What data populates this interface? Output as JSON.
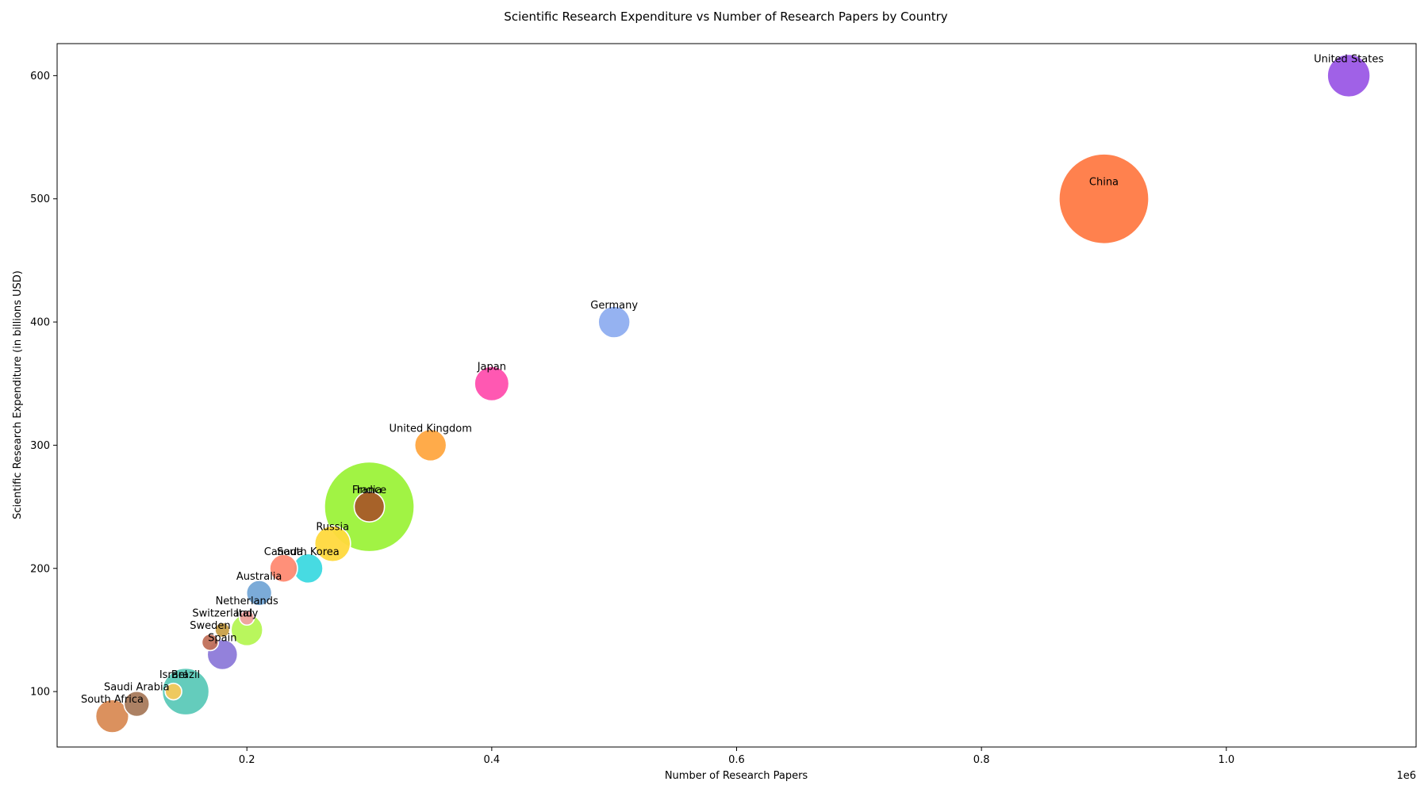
{
  "chart_data": {
    "type": "scatter",
    "title": "Scientific Research Expenditure vs Number of Research Papers by Country",
    "xlabel": "Number of Research Papers",
    "ylabel": "Scientific Research Expenditure (in billions USD)",
    "x_offset_text": "1e6",
    "xlim": [
      45000,
      1155000
    ],
    "ylim": [
      55,
      626
    ],
    "xticks": [
      200000,
      400000,
      600000,
      800000,
      1000000
    ],
    "xtick_labels": [
      "0.2",
      "0.4",
      "0.6",
      "0.8",
      "1.0"
    ],
    "yticks": [
      100,
      200,
      300,
      400,
      500,
      600
    ],
    "ytick_labels": [
      "100",
      "200",
      "300",
      "400",
      "500",
      "600"
    ],
    "grid": false,
    "legend": "none",
    "size_note": "bubble size relative",
    "points": [
      {
        "label": "United States",
        "x": 1100000,
        "y": 600,
        "size": 1.0,
        "color": "#9b59e6"
      },
      {
        "label": "China",
        "x": 900000,
        "y": 500,
        "size": 4.4,
        "color": "#ff7a45"
      },
      {
        "label": "Germany",
        "x": 500000,
        "y": 400,
        "size": 0.55,
        "color": "#8faef0"
      },
      {
        "label": "Japan",
        "x": 400000,
        "y": 350,
        "size": 0.65,
        "color": "#ff4fae"
      },
      {
        "label": "United Kingdom",
        "x": 350000,
        "y": 300,
        "size": 0.55,
        "color": "#ffa640"
      },
      {
        "label": "India",
        "x": 300000,
        "y": 250,
        "size": 4.4,
        "color": "#9cf23a"
      },
      {
        "label": "France",
        "x": 300000,
        "y": 250,
        "size": 0.5,
        "color": "#a85a28"
      },
      {
        "label": "Russia",
        "x": 270000,
        "y": 220,
        "size": 0.7,
        "color": "#ffd93d"
      },
      {
        "label": "Canada",
        "x": 230000,
        "y": 200,
        "size": 0.42,
        "color": "#ff8a72"
      },
      {
        "label": "South Korea",
        "x": 250000,
        "y": 200,
        "size": 0.48,
        "color": "#3dd9e0"
      },
      {
        "label": "Australia",
        "x": 210000,
        "y": 180,
        "size": 0.35,
        "color": "#74a6d6"
      },
      {
        "label": "Netherlands",
        "x": 200000,
        "y": 160,
        "size": 0.12,
        "color": "#f0a0a0"
      },
      {
        "label": "Italy",
        "x": 200000,
        "y": 150,
        "size": 0.55,
        "color": "#b5f554"
      },
      {
        "label": "Switzerland",
        "x": 180000,
        "y": 150,
        "size": 0.12,
        "color": "#c8a048"
      },
      {
        "label": "Sweden",
        "x": 170000,
        "y": 140,
        "size": 0.15,
        "color": "#c0705a"
      },
      {
        "label": "Spain",
        "x": 180000,
        "y": 130,
        "size": 0.5,
        "color": "#8d7ad9"
      },
      {
        "label": "Brazil",
        "x": 150000,
        "y": 100,
        "size": 1.2,
        "color": "#5cc9b8"
      },
      {
        "label": "Israel",
        "x": 140000,
        "y": 100,
        "size": 0.15,
        "color": "#f5c85a"
      },
      {
        "label": "Saudi Arabia",
        "x": 110000,
        "y": 90,
        "size": 0.35,
        "color": "#a87a5c"
      },
      {
        "label": "South Africa",
        "x": 90000,
        "y": 80,
        "size": 0.6,
        "color": "#d98b55"
      }
    ]
  }
}
